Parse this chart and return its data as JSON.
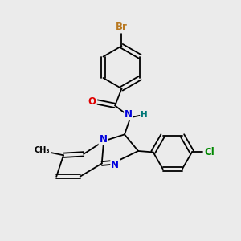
{
  "background_color": "#ebebeb",
  "bond_color": "#000000",
  "atoms": {
    "Br": {
      "color": "#b87820"
    },
    "O": {
      "color": "#e00000"
    },
    "N": {
      "color": "#0000dd"
    },
    "H": {
      "color": "#007777"
    },
    "Cl": {
      "color": "#008800"
    },
    "C": {
      "color": "#000000"
    }
  },
  "figsize": [
    3.0,
    3.0
  ],
  "dpi": 100
}
